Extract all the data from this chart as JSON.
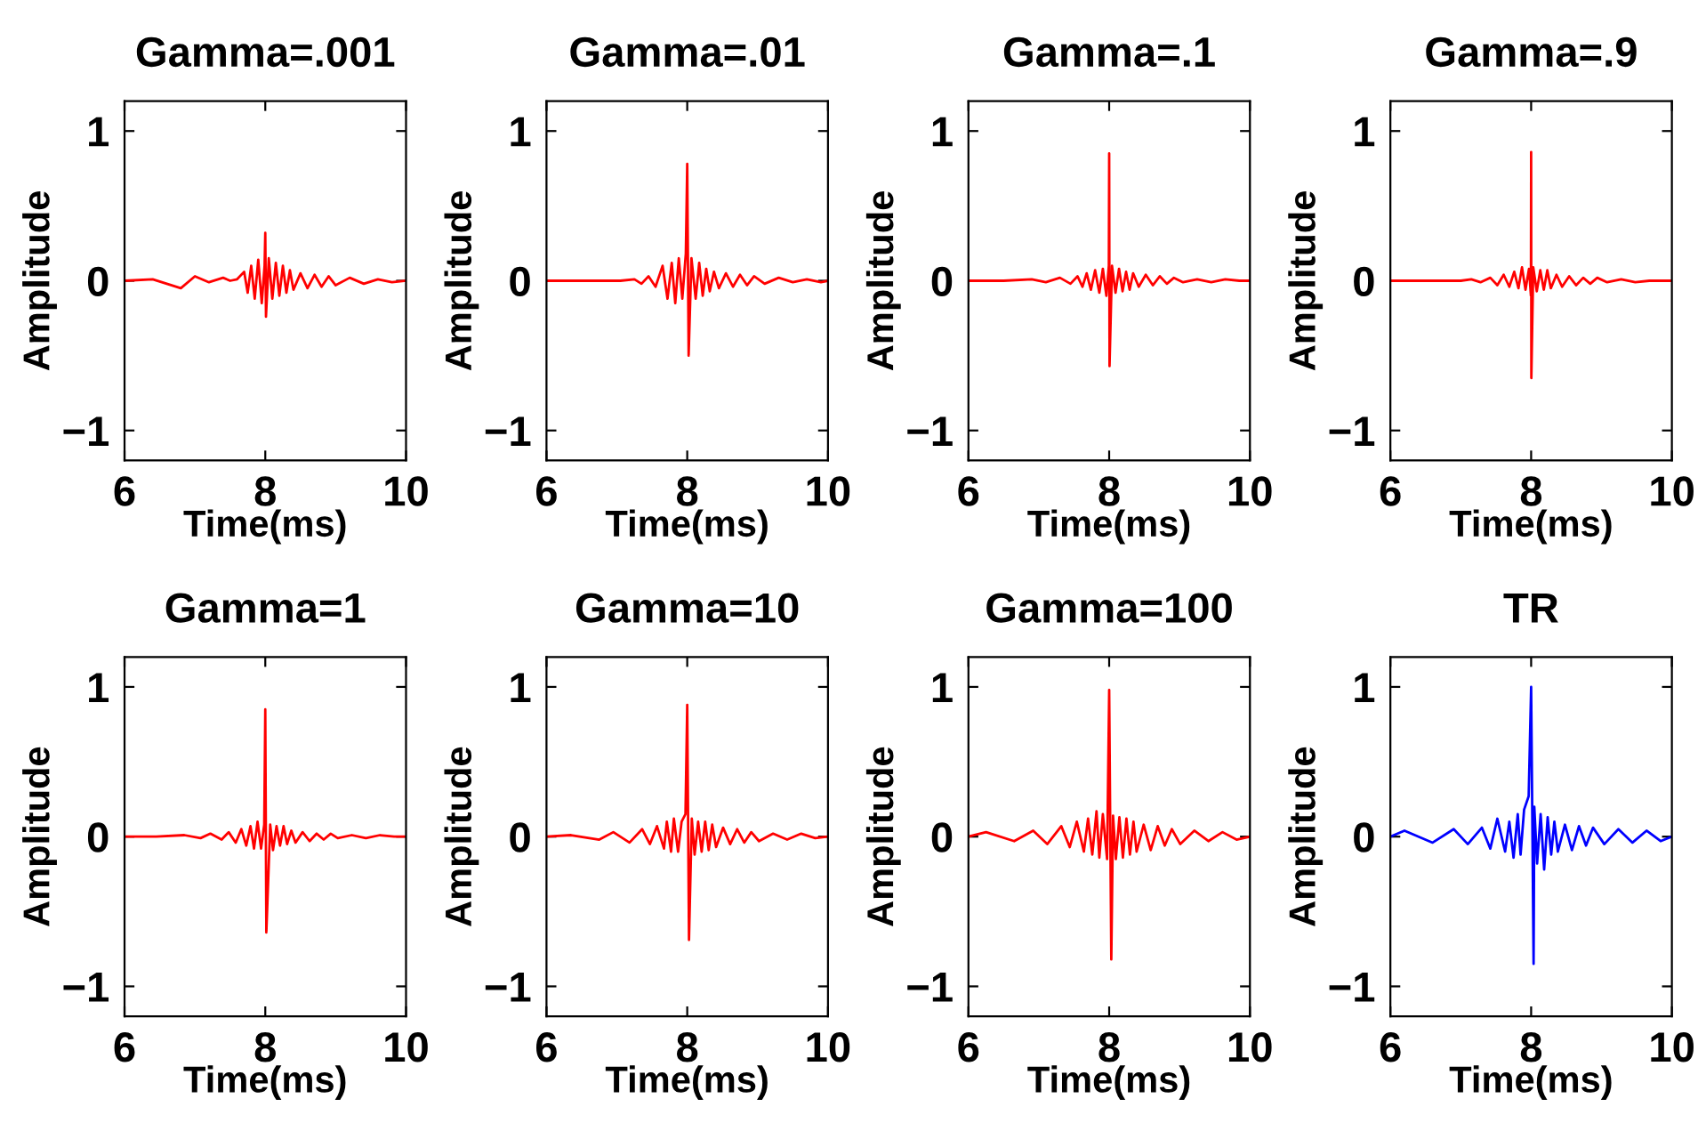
{
  "chart_data": [
    {
      "type": "line",
      "title": "Gamma=.001",
      "xlabel": "Time(ms)",
      "ylabel": "Amplitude",
      "xlim": [
        6,
        10
      ],
      "ylim": [
        -1.2,
        1.2
      ],
      "xticks": [
        6,
        8,
        10
      ],
      "yticks": [
        -1,
        0,
        1
      ],
      "grid": false,
      "x": [
        6,
        6.4,
        6.8,
        7.0,
        7.2,
        7.4,
        7.5,
        7.6,
        7.7,
        7.75,
        7.8,
        7.85,
        7.9,
        7.95,
        7.99,
        8.0,
        8.01,
        8.05,
        8.1,
        8.15,
        8.2,
        8.25,
        8.3,
        8.35,
        8.4,
        8.5,
        8.6,
        8.7,
        8.8,
        8.9,
        9.0,
        9.2,
        9.4,
        9.6,
        9.8,
        10
      ],
      "series": [
        {
          "color": "#ff0000",
          "values": [
            0,
            0.01,
            -0.05,
            0.03,
            -0.01,
            0.02,
            0,
            0.01,
            0.06,
            -0.08,
            0.1,
            -0.12,
            0.14,
            -0.15,
            0.1,
            0.32,
            -0.24,
            0.15,
            -0.12,
            0.12,
            -0.1,
            0.1,
            -0.08,
            0.07,
            -0.06,
            0.05,
            -0.05,
            0.04,
            -0.04,
            0.03,
            -0.03,
            0.02,
            -0.02,
            0.01,
            -0.01,
            0
          ]
        }
      ]
    },
    {
      "type": "line",
      "title": "Gamma=.01",
      "xlabel": "Time(ms)",
      "ylabel": "Amplitude",
      "xlim": [
        6,
        10
      ],
      "ylim": [
        -1.2,
        1.2
      ],
      "xticks": [
        6,
        8,
        10
      ],
      "yticks": [
        -1,
        0,
        1
      ],
      "grid": false,
      "x": [
        6,
        6.3,
        6.7,
        7.05,
        7.25,
        7.35,
        7.45,
        7.55,
        7.65,
        7.72,
        7.78,
        7.83,
        7.88,
        7.93,
        7.98,
        8.0,
        8.02,
        8.06,
        8.12,
        8.17,
        8.22,
        8.27,
        8.32,
        8.38,
        8.45,
        8.55,
        8.65,
        8.75,
        8.85,
        8.95,
        9.1,
        9.3,
        9.5,
        9.7,
        9.9,
        10
      ],
      "series": [
        {
          "color": "#ff0000",
          "values": [
            0,
            0,
            0,
            0,
            0.01,
            -0.02,
            0.03,
            -0.04,
            0.1,
            -0.12,
            0.12,
            -0.15,
            0.15,
            -0.12,
            0.18,
            0.78,
            -0.5,
            0.15,
            -0.12,
            0.12,
            -0.1,
            0.08,
            -0.07,
            0.06,
            -0.05,
            0.05,
            -0.04,
            0.04,
            -0.03,
            0.03,
            -0.02,
            0.02,
            -0.01,
            0.01,
            -0.01,
            0
          ]
        }
      ]
    },
    {
      "type": "line",
      "title": "Gamma=.1",
      "xlabel": "Time(ms)",
      "ylabel": "Amplitude",
      "xlim": [
        6,
        10
      ],
      "ylim": [
        -1.2,
        1.2
      ],
      "xticks": [
        6,
        8,
        10
      ],
      "yticks": [
        -1,
        0,
        1
      ],
      "grid": false,
      "x": [
        6,
        6.5,
        6.9,
        7.1,
        7.3,
        7.45,
        7.55,
        7.62,
        7.68,
        7.74,
        7.8,
        7.86,
        7.91,
        7.96,
        7.995,
        8.0,
        8.005,
        8.04,
        8.09,
        8.14,
        8.19,
        8.24,
        8.29,
        8.34,
        8.42,
        8.52,
        8.62,
        8.72,
        8.82,
        8.92,
        9.05,
        9.25,
        9.45,
        9.65,
        9.85,
        10
      ],
      "series": [
        {
          "color": "#ff0000",
          "values": [
            0,
            0,
            0.01,
            -0.01,
            0.02,
            -0.02,
            0.03,
            -0.04,
            0.05,
            -0.06,
            0.07,
            -0.08,
            0.08,
            -0.1,
            0.1,
            0.85,
            -0.57,
            0.1,
            -0.08,
            0.08,
            -0.07,
            0.06,
            -0.06,
            0.05,
            -0.04,
            0.04,
            -0.03,
            0.03,
            -0.02,
            0.02,
            -0.01,
            0.01,
            -0.01,
            0.01,
            0,
            0
          ]
        }
      ]
    },
    {
      "type": "line",
      "title": "Gamma=.9",
      "xlabel": "Time(ms)",
      "ylabel": "Amplitude",
      "xlim": [
        6,
        10
      ],
      "ylim": [
        -1.2,
        1.2
      ],
      "xticks": [
        6,
        8,
        10
      ],
      "yticks": [
        -1,
        0,
        1
      ],
      "grid": false,
      "x": [
        6,
        6.6,
        7.0,
        7.15,
        7.28,
        7.42,
        7.52,
        7.61,
        7.69,
        7.76,
        7.82,
        7.87,
        7.92,
        7.97,
        7.997,
        8.0,
        8.003,
        8.03,
        8.08,
        8.13,
        8.18,
        8.23,
        8.28,
        8.36,
        8.44,
        8.54,
        8.64,
        8.74,
        8.84,
        8.94,
        9.08,
        9.28,
        9.48,
        9.68,
        9.88,
        10
      ],
      "series": [
        {
          "color": "#ff0000",
          "values": [
            0,
            0,
            0,
            0.01,
            -0.01,
            0.02,
            -0.03,
            0.04,
            -0.04,
            0.06,
            -0.05,
            0.09,
            -0.06,
            0.08,
            -0.1,
            0.86,
            -0.65,
            0.09,
            -0.07,
            0.07,
            -0.06,
            0.07,
            -0.05,
            0.04,
            -0.04,
            0.03,
            -0.03,
            0.02,
            -0.02,
            0.02,
            -0.01,
            0.01,
            -0.01,
            0,
            0,
            0
          ]
        }
      ]
    },
    {
      "type": "line",
      "title": "Gamma=1",
      "xlabel": "Time(ms)",
      "ylabel": "Amplitude",
      "xlim": [
        6,
        10
      ],
      "ylim": [
        -1.2,
        1.2
      ],
      "xticks": [
        6,
        8,
        10
      ],
      "yticks": [
        -1,
        0,
        1
      ],
      "grid": false,
      "x": [
        6,
        6.45,
        6.85,
        7.08,
        7.22,
        7.38,
        7.48,
        7.58,
        7.66,
        7.73,
        7.79,
        7.84,
        7.89,
        7.94,
        7.985,
        8.0,
        8.015,
        8.07,
        8.11,
        8.16,
        8.21,
        8.26,
        8.31,
        8.37,
        8.43,
        8.53,
        8.63,
        8.73,
        8.83,
        8.93,
        9.03,
        9.23,
        9.43,
        9.63,
        9.83,
        10
      ],
      "series": [
        {
          "color": "#ff0000",
          "values": [
            0,
            0,
            0.01,
            -0.01,
            0.02,
            -0.02,
            0.03,
            -0.04,
            0.05,
            -0.06,
            0.07,
            -0.08,
            0.1,
            -0.08,
            0.08,
            0.85,
            -0.64,
            0.08,
            -0.09,
            0.07,
            -0.06,
            0.07,
            -0.05,
            0.04,
            -0.04,
            0.03,
            -0.03,
            0.02,
            -0.02,
            0.02,
            -0.01,
            0.01,
            -0.01,
            0.01,
            0,
            0
          ]
        }
      ]
    },
    {
      "type": "line",
      "title": "Gamma=10",
      "xlabel": "Time(ms)",
      "ylabel": "Amplitude",
      "xlim": [
        6,
        10
      ],
      "ylim": [
        -1.2,
        1.2
      ],
      "xticks": [
        6,
        8,
        10
      ],
      "yticks": [
        -1,
        0,
        1
      ],
      "grid": false,
      "x": [
        6,
        6.35,
        6.75,
        6.95,
        7.18,
        7.36,
        7.47,
        7.57,
        7.67,
        7.71,
        7.77,
        7.81,
        7.87,
        7.92,
        7.975,
        8.0,
        8.025,
        8.065,
        8.105,
        8.155,
        8.205,
        8.255,
        8.305,
        8.355,
        8.41,
        8.51,
        8.61,
        8.71,
        8.81,
        8.91,
        9.02,
        9.22,
        9.42,
        9.62,
        9.82,
        10
      ],
      "series": [
        {
          "color": "#ff0000",
          "values": [
            0,
            0.01,
            -0.02,
            0.03,
            -0.04,
            0.05,
            -0.05,
            0.07,
            -0.08,
            0.1,
            -0.1,
            0.12,
            -0.1,
            0.1,
            0.15,
            0.88,
            -0.69,
            0.12,
            -0.12,
            0.1,
            -0.1,
            0.1,
            -0.09,
            0.08,
            -0.07,
            0.06,
            -0.05,
            0.05,
            -0.04,
            0.03,
            -0.03,
            0.02,
            -0.02,
            0.02,
            -0.01,
            0
          ]
        }
      ]
    },
    {
      "type": "line",
      "title": "Gamma=100",
      "xlabel": "Time(ms)",
      "ylabel": "Amplitude",
      "xlim": [
        6,
        10
      ],
      "ylim": [
        -1.2,
        1.2
      ],
      "xticks": [
        6,
        8,
        10
      ],
      "yticks": [
        -1,
        0,
        1
      ],
      "grid": false,
      "x": [
        6,
        6.25,
        6.65,
        6.92,
        7.12,
        7.32,
        7.44,
        7.54,
        7.64,
        7.7,
        7.76,
        7.82,
        7.86,
        7.91,
        7.97,
        8.0,
        8.03,
        8.055,
        8.095,
        8.145,
        8.195,
        8.245,
        8.295,
        8.345,
        8.39,
        8.49,
        8.59,
        8.69,
        8.79,
        8.89,
        9.01,
        9.21,
        9.41,
        9.61,
        9.81,
        10
      ],
      "series": [
        {
          "color": "#ff0000",
          "values": [
            0,
            0.03,
            -0.03,
            0.04,
            -0.05,
            0.07,
            -0.07,
            0.1,
            -0.1,
            0.12,
            -0.12,
            0.17,
            -0.14,
            0.15,
            -0.15,
            0.98,
            -0.82,
            0.14,
            -0.15,
            0.13,
            -0.14,
            0.12,
            -0.12,
            0.1,
            -0.1,
            0.08,
            -0.09,
            0.07,
            -0.06,
            0.05,
            -0.05,
            0.04,
            -0.03,
            0.03,
            -0.02,
            0
          ]
        }
      ]
    },
    {
      "type": "line",
      "title": "TR",
      "xlabel": "Time(ms)",
      "ylabel": "Amplitude",
      "xlim": [
        6,
        10
      ],
      "ylim": [
        -1.2,
        1.2
      ],
      "xticks": [
        6,
        8,
        10
      ],
      "yticks": [
        -1,
        0,
        1
      ],
      "grid": false,
      "x": [
        6,
        6.2,
        6.6,
        6.9,
        7.1,
        7.3,
        7.42,
        7.52,
        7.63,
        7.69,
        7.75,
        7.81,
        7.85,
        7.9,
        7.965,
        8.0,
        8.035,
        8.045,
        8.085,
        8.135,
        8.185,
        8.235,
        8.285,
        8.33,
        8.38,
        8.48,
        8.58,
        8.68,
        8.78,
        8.88,
        9.04,
        9.24,
        9.44,
        9.64,
        9.84,
        10
      ],
      "series": [
        {
          "color": "#0000ff",
          "values": [
            0,
            0.04,
            -0.04,
            0.05,
            -0.05,
            0.06,
            -0.08,
            0.12,
            -0.1,
            0.1,
            -0.14,
            0.15,
            -0.12,
            0.18,
            0.27,
            1.0,
            -0.85,
            0.2,
            -0.18,
            0.15,
            -0.22,
            0.13,
            -0.12,
            0.1,
            -0.1,
            0.08,
            -0.09,
            0.07,
            -0.06,
            0.06,
            -0.05,
            0.05,
            -0.04,
            0.04,
            -0.03,
            0
          ]
        }
      ]
    }
  ]
}
